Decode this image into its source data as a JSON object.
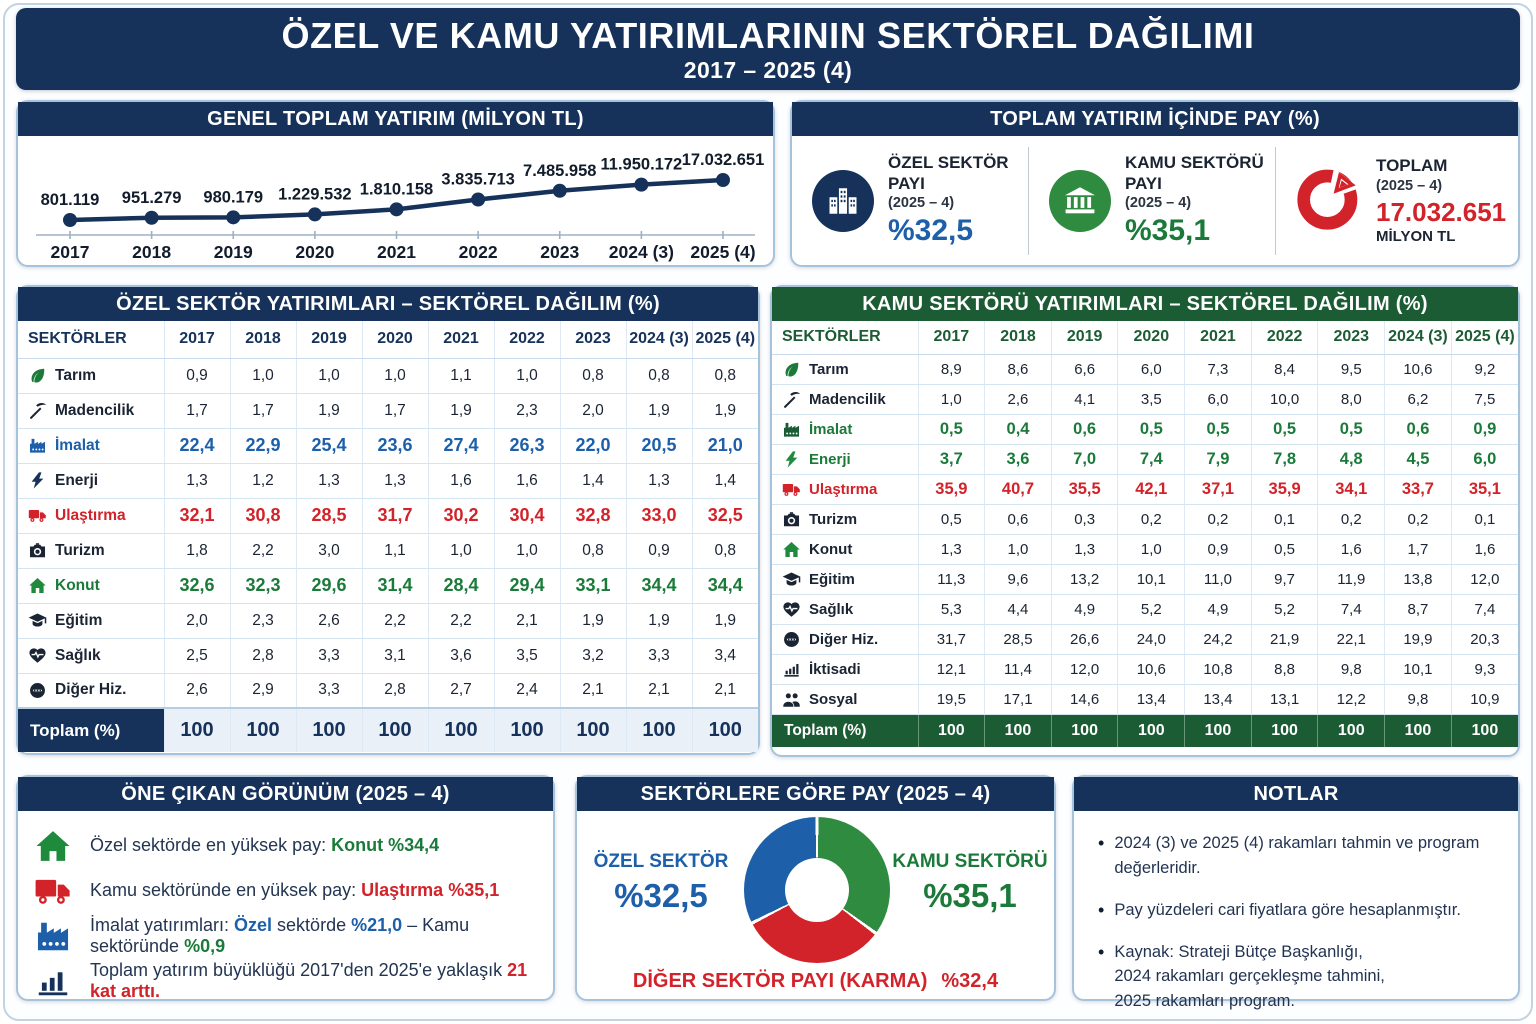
{
  "header": {
    "title": "ÖZEL VE KAMU YATIRIMLARININ SEKTÖREL DAĞILIMI",
    "subtitle": "2017 – 2025  (4)"
  },
  "colors": {
    "navy": "#16325a",
    "blue_accent": "#1d5fa9",
    "green_dark": "#1c5c34",
    "green_accent": "#1b7a3a",
    "donut_green": "#2e8b3f",
    "red_accent": "#d2232a"
  },
  "chart_data": [
    {
      "id": "general-total",
      "type": "line",
      "title": "GENEL TOPLAM YATIRIM (MİLYON TL)",
      "x": [
        "2017",
        "2018",
        "2019",
        "2020",
        "2021",
        "2022",
        "2023",
        "2024 (3)",
        "2025 (4)"
      ],
      "values": [
        801119,
        951279,
        980179,
        1229532,
        1810158,
        3835713,
        7485958,
        11950172,
        17032651
      ],
      "point_labels": [
        "801.119",
        "951.279",
        "980.179",
        "1.229.532",
        "1.810.158",
        "3.835.713",
        "7.485.958",
        "11.950.172",
        "17.032.651"
      ],
      "ylabel": "MİLYON TL",
      "grid": false,
      "legend": "none"
    },
    {
      "id": "sector-share-donut",
      "type": "pie",
      "title": "SEKTÖRLERE GÖRE PAY (2025 – 4)",
      "donut": true,
      "start": "top-clockwise",
      "segments": [
        {
          "label": "KAMU SEKTÖRÜ",
          "value": 35.1,
          "display": "%35,1",
          "color": "#2e8b3f"
        },
        {
          "label": "DİĞER SEKTÖR PAYI (KARMA)",
          "value": 32.4,
          "display": "%32,4",
          "color": "#d2232a"
        },
        {
          "label": "ÖZEL SEKTÖR",
          "value": 32.5,
          "display": "%32,5",
          "color": "#1d5fa9"
        }
      ]
    },
    {
      "id": "ozel-table",
      "type": "table",
      "title": "ÖZEL SEKTÖR YATIRIMLARI – SEKTÖREL DAĞILIM (%)",
      "col_header": "SEKTÖRLER",
      "columns": [
        "2017",
        "2018",
        "2019",
        "2020",
        "2021",
        "2022",
        "2023",
        "2024 (3)",
        "2025 (4)"
      ],
      "rows": [
        {
          "sector": "Tarım",
          "icon": "leaf-icon",
          "icon_color": "#1b7a3a",
          "emphasis": null,
          "values": [
            "0,9",
            "1,0",
            "1,0",
            "1,0",
            "1,1",
            "1,0",
            "0,8",
            "0,8",
            "0,8"
          ]
        },
        {
          "sector": "Madencilik",
          "icon": "pickaxe-icon",
          "icon_color": "#1b2433",
          "emphasis": null,
          "values": [
            "1,7",
            "1,7",
            "1,9",
            "1,7",
            "1,9",
            "2,3",
            "2,0",
            "1,9",
            "1,9"
          ]
        },
        {
          "sector": "İmalat",
          "icon": "factory-icon",
          "icon_color": "#1d5fa9",
          "emphasis": "blue",
          "values": [
            "22,4",
            "22,9",
            "25,4",
            "23,6",
            "27,4",
            "26,3",
            "22,0",
            "20,5",
            "21,0"
          ]
        },
        {
          "sector": "Enerji",
          "icon": "bolt-icon",
          "icon_color": "#16325a",
          "emphasis": null,
          "values": [
            "1,3",
            "1,2",
            "1,3",
            "1,3",
            "1,6",
            "1,6",
            "1,4",
            "1,3",
            "1,4"
          ]
        },
        {
          "sector": "Ulaştırma",
          "icon": "truck-icon",
          "icon_color": "#d2232a",
          "emphasis": "red",
          "values": [
            "32,1",
            "30,8",
            "28,5",
            "31,7",
            "30,2",
            "30,4",
            "32,8",
            "33,0",
            "32,5"
          ]
        },
        {
          "sector": "Turizm",
          "icon": "camera-icon",
          "icon_color": "#1b2433",
          "emphasis": null,
          "values": [
            "1,8",
            "2,2",
            "3,0",
            "1,1",
            "1,0",
            "1,0",
            "0,8",
            "0,9",
            "0,8"
          ]
        },
        {
          "sector": "Konut",
          "icon": "house-icon",
          "icon_color": "#1e8a3c",
          "emphasis": "green",
          "values": [
            "32,6",
            "32,3",
            "29,6",
            "31,4",
            "28,4",
            "29,4",
            "33,1",
            "34,4",
            "34,4"
          ]
        },
        {
          "sector": "Eğitim",
          "icon": "gradcap-icon",
          "icon_color": "#1b2433",
          "emphasis": null,
          "values": [
            "2,0",
            "2,3",
            "2,6",
            "2,2",
            "2,2",
            "2,1",
            "1,9",
            "1,9",
            "1,9"
          ]
        },
        {
          "sector": "Sağlık",
          "icon": "heart-icon",
          "icon_color": "#1b2433",
          "emphasis": null,
          "values": [
            "2,5",
            "2,8",
            "3,3",
            "3,1",
            "3,6",
            "3,5",
            "3,2",
            "3,3",
            "3,4"
          ]
        },
        {
          "sector": "Diğer Hiz.",
          "icon": "services-icon",
          "icon_color": "#1b2433",
          "emphasis": null,
          "values": [
            "2,6",
            "2,9",
            "3,3",
            "2,8",
            "2,7",
            "2,4",
            "2,1",
            "2,1",
            "2,1"
          ]
        }
      ],
      "total_label": "Toplam (%)",
      "totals": [
        "100",
        "100",
        "100",
        "100",
        "100",
        "100",
        "100",
        "100",
        "100"
      ]
    },
    {
      "id": "kamu-table",
      "type": "table",
      "title": "KAMU SEKTÖRÜ YATIRIMLARI – SEKTÖREL DAĞILIM (%)",
      "col_header": "SEKTÖRLER",
      "columns": [
        "2017",
        "2018",
        "2019",
        "2020",
        "2021",
        "2022",
        "2023",
        "2024 (3)",
        "2025 (4)"
      ],
      "rows": [
        {
          "sector": "Tarım",
          "icon": "leaf-icon",
          "icon_color": "#1b7a3a",
          "emphasis": null,
          "values": [
            "8,9",
            "8,6",
            "6,6",
            "6,0",
            "7,3",
            "8,4",
            "9,5",
            "10,6",
            "9,2"
          ]
        },
        {
          "sector": "Madencilik",
          "icon": "pickaxe-icon",
          "icon_color": "#1b2433",
          "emphasis": null,
          "values": [
            "1,0",
            "2,6",
            "4,1",
            "3,5",
            "6,0",
            "10,0",
            "8,0",
            "6,2",
            "7,5"
          ]
        },
        {
          "sector": "İmalat",
          "icon": "factory-icon",
          "icon_color": "#1c5c34",
          "emphasis": "green",
          "values": [
            "0,5",
            "0,4",
            "0,6",
            "0,5",
            "0,5",
            "0,5",
            "0,5",
            "0,6",
            "0,9"
          ]
        },
        {
          "sector": "Enerji",
          "icon": "bolt-icon",
          "icon_color": "#1e8a3c",
          "emphasis": "green",
          "values": [
            "3,7",
            "3,6",
            "7,0",
            "7,4",
            "7,9",
            "7,8",
            "4,8",
            "4,5",
            "6,0"
          ]
        },
        {
          "sector": "Ulaştırma",
          "icon": "truck-icon",
          "icon_color": "#d2232a",
          "emphasis": "red",
          "values": [
            "35,9",
            "40,7",
            "35,5",
            "42,1",
            "37,1",
            "35,9",
            "34,1",
            "33,7",
            "35,1"
          ]
        },
        {
          "sector": "Turizm",
          "icon": "camera-icon",
          "icon_color": "#1b2433",
          "emphasis": null,
          "values": [
            "0,5",
            "0,6",
            "0,3",
            "0,2",
            "0,2",
            "0,1",
            "0,2",
            "0,2",
            "0,1"
          ]
        },
        {
          "sector": "Konut",
          "icon": "house-icon",
          "icon_color": "#1e8a3c",
          "emphasis": null,
          "values": [
            "1,3",
            "1,0",
            "1,3",
            "1,0",
            "0,9",
            "0,5",
            "1,6",
            "1,7",
            "1,6"
          ]
        },
        {
          "sector": "Eğitim",
          "icon": "gradcap-icon",
          "icon_color": "#1b2433",
          "emphasis": null,
          "values": [
            "11,3",
            "9,6",
            "13,2",
            "10,1",
            "11,0",
            "9,7",
            "11,9",
            "13,8",
            "12,0"
          ]
        },
        {
          "sector": "Sağlık",
          "icon": "heart-icon",
          "icon_color": "#1b2433",
          "emphasis": null,
          "values": [
            "5,3",
            "4,4",
            "4,9",
            "5,2",
            "4,9",
            "5,2",
            "7,4",
            "8,7",
            "7,4"
          ]
        },
        {
          "sector": "Diğer Hiz.",
          "icon": "services-icon",
          "icon_color": "#1b2433",
          "emphasis": null,
          "values": [
            "31,7",
            "28,5",
            "26,6",
            "24,0",
            "24,2",
            "21,9",
            "22,1",
            "19,9",
            "20,3"
          ]
        },
        {
          "sector": "İktisadi",
          "icon": "econ-icon",
          "icon_color": "#1b2433",
          "emphasis": null,
          "values": [
            "12,1",
            "11,4",
            "12,0",
            "10,6",
            "10,8",
            "8,8",
            "9,8",
            "10,1",
            "9,3"
          ]
        },
        {
          "sector": "Sosyal",
          "icon": "social-icon",
          "icon_color": "#1b2433",
          "emphasis": null,
          "values": [
            "19,5",
            "17,1",
            "14,6",
            "13,4",
            "13,4",
            "13,1",
            "12,2",
            "9,8",
            "10,9"
          ]
        }
      ],
      "total_label": "Toplam (%)",
      "totals": [
        "100",
        "100",
        "100",
        "100",
        "100",
        "100",
        "100",
        "100",
        "100"
      ]
    }
  ],
  "share_panel": {
    "title": "TOPLAM YATIRIM İÇİNDE PAY (%)",
    "items": [
      {
        "icon": "building-icon",
        "circle_color": "#16325a",
        "title": "ÖZEL SEKTÖR PAYI",
        "period": "(2025 – 4)",
        "value": "%32,5"
      },
      {
        "icon": "bank-icon",
        "circle_color": "#2e8b3f",
        "title": "KAMU SEKTÖRÜ PAYI",
        "period": "(2025 – 4)",
        "value": "%35,1"
      },
      {
        "icon": "pie-icon",
        "title": "TOPLAM",
        "period": "(2025 – 4)",
        "value": "17.032.651",
        "unit": "MİLYON TL"
      }
    ]
  },
  "highlights": {
    "title": "ÖNE ÇIKAN GÖRÜNÜM (2025 – 4)",
    "items": [
      {
        "icon": "house-icon",
        "icon_color": "#1e8a3c",
        "segments": [
          {
            "text": "Özel sektörde en yüksek pay: ",
            "style": "dark"
          },
          {
            "text": "Konut %34,4",
            "style": "green"
          }
        ]
      },
      {
        "icon": "truck-icon",
        "icon_color": "#d2232a",
        "segments": [
          {
            "text": "Kamu sektöründe en yüksek pay: ",
            "style": "dark"
          },
          {
            "text": "Ulaştırma %35,1",
            "style": "red"
          }
        ]
      },
      {
        "icon": "factory-icon",
        "icon_color": "#1d5fa9",
        "segments": [
          {
            "text": "İmalat yatırımları: ",
            "style": "dark"
          },
          {
            "text": "Özel",
            "style": "blue"
          },
          {
            "text": " sektörde ",
            "style": "dark"
          },
          {
            "text": "%21,0",
            "style": "blue"
          },
          {
            "text": " – Kamu sektöründe ",
            "style": "dark"
          },
          {
            "text": "%0,9",
            "style": "green"
          }
        ]
      },
      {
        "icon": "bars-icon",
        "icon_color": "#16325a",
        "segments": [
          {
            "text": "Toplam yatırım büyüklüğü 2017'den 2025'e yaklaşık ",
            "style": "dark"
          },
          {
            "text": "21 kat arttı.",
            "style": "red"
          }
        ]
      }
    ]
  },
  "notes": {
    "title": "NOTLAR",
    "items": [
      {
        "lines": [
          "2024 (3) ve 2025 (4) rakamları tahmin ve program değerleridir."
        ]
      },
      {
        "lines": [
          "Pay yüzdeleri cari fiyatlara göre hesaplanmıştır."
        ]
      },
      {
        "lines": [
          "Kaynak: Strateji Bütçe Başkanlığı,",
          "2024 rakamları gerçekleşme tahmini,",
          "2025 rakamları program."
        ]
      }
    ]
  }
}
